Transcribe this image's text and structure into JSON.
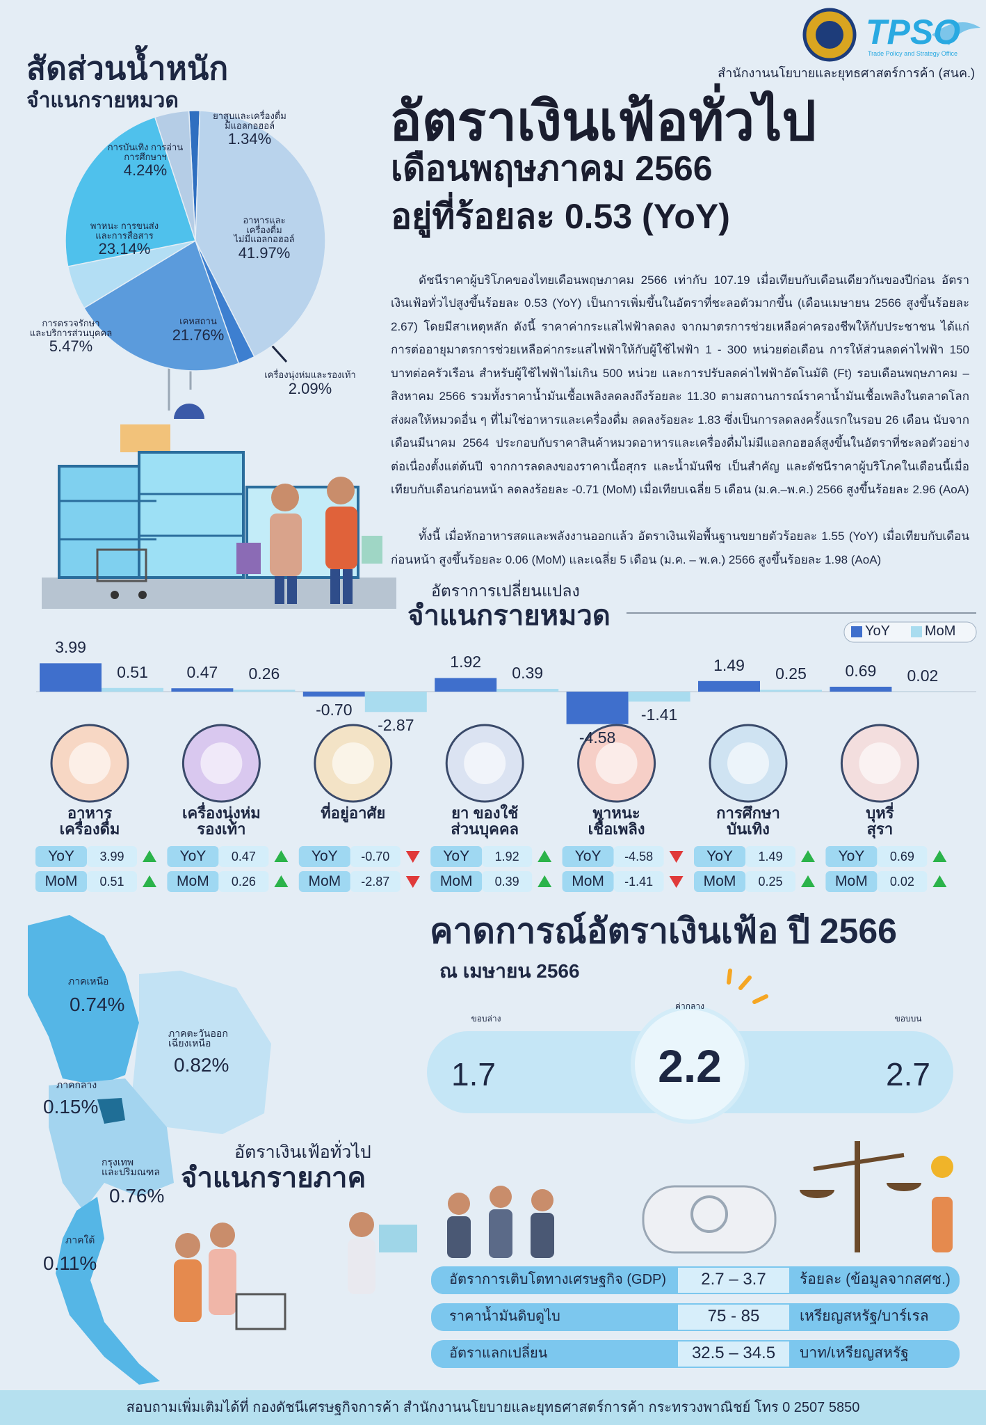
{
  "header": {
    "logo_text": "TPSO",
    "logo_sub": "Trade Policy and Strategy Office",
    "org": "สำนักงานนโยบายและยุทธศาสตร์การค้า (สนค.)"
  },
  "headline": {
    "title": "อัตราเงินเฟ้อทั่วไป",
    "month": "เดือนพฤษภาคม 2566",
    "rate": "อยู่ที่ร้อยละ 0.53 (YoY)"
  },
  "body": {
    "paragraphs": [
      "ดัชนีราคาผู้บริโภคของไทยเดือนพฤษภาคม 2566 เท่ากับ 107.19 เมื่อเทียบกับเดือนเดียวกันของปีก่อน อัตราเงินเฟ้อทั่วไปสูงขึ้นร้อยละ 0.53 (YoY) เป็นการเพิ่มขึ้นในอัตราที่ชะลอตัวมากขึ้น (เดือนเมษายน 2566 สูงขึ้นร้อยละ 2.67) โดยมีสาเหตุหลัก ดังนี้ ราคาค่ากระแสไฟฟ้าลดลง จากมาตรการช่วยเหลือค่าครองชีพให้กับประชาชน ได้แก่ การต่ออายุมาตรการช่วยเหลือค่ากระแสไฟฟ้าให้กับผู้ใช้ไฟฟ้า 1 - 300 หน่วยต่อเดือน การให้ส่วนลดค่าไฟฟ้า 150 บาทต่อครัวเรือน สำหรับผู้ใช้ไฟฟ้าไม่เกิน 500 หน่วย และการปรับลดค่าไฟฟ้าอัตโนมัติ (Ft) รอบเดือนพฤษภาคม –สิงหาคม 2566 รวมทั้งราคาน้ำมันเชื้อเพลิงลดลงถึงร้อยละ 11.30 ตามสถานการณ์ราคาน้ำมันเชื้อเพลิงในตลาดโลก ส่งผลให้หมวดอื่น ๆ ที่ไม่ใช่อาหารและเครื่องดื่ม ลดลงร้อยละ 1.83 ซึ่งเป็นการลดลงครั้งแรกในรอบ 26 เดือน นับจากเดือนมีนาคม 2564 ประกอบกับราคาสินค้าหมวดอาหารและเครื่องดื่มไม่มีแอลกอฮอล์สูงขึ้นในอัตราที่ชะลอตัวอย่างต่อเนื่องตั้งแต่ต้นปี จากการลดลงของราคาเนื้อสุกร และน้ำมันพืช เป็นสำคัญ และดัชนีราคาผู้บริโภคในเดือนนี้เมื่อเทียบกับเดือนก่อนหน้า ลดลงร้อยละ -0.71 (MoM) เมื่อเทียบเฉลี่ย 5 เดือน (ม.ค.–พ.ค.) 2566 สูงขึ้นร้อยละ 2.96 (AoA)",
      "ทั้งนี้ เมื่อหักอาหารสดและพลังงานออกแล้ว อัตราเงินเฟ้อพื้นฐานขยายตัวร้อยละ 1.55 (YoY) เมื่อเทียบกับเดือนก่อนหน้า สูงขึ้นร้อยละ 0.06 (MoM) และเฉลี่ย 5 เดือน (ม.ค. – พ.ค.) 2566 สูงขึ้นร้อยละ 1.98 (AoA)"
    ]
  },
  "chart_data": [
    {
      "type": "pie",
      "title": "สัดส่วนน้ำหนัก",
      "subtitle": "จำแนกรายหมวด",
      "categories": [
        "ยาสูบและเครื่องดื่ม\nมีแอลกอฮอล์",
        "อาหารและ\nเครื่องดื่ม\nไม่มีแอลกอฮอล์",
        "เครื่องนุ่งห่มและรองเท้า",
        "เคหสถาน",
        "การตรวจรักษา\nและบริการส่วนบุคคล",
        "พาหนะ การขนส่ง\nและการสื่อสาร",
        "การบันเทิง การอ่าน\nการศึกษาฯ"
      ],
      "values": [
        1.34,
        41.97,
        2.09,
        21.76,
        5.47,
        23.14,
        4.24
      ],
      "value_labels": [
        "1.34%",
        "41.97%",
        "2.09%",
        "21.76%",
        "5.47%",
        "23.14%",
        "4.24%"
      ],
      "colors": [
        "#2f6fc0",
        "#b9d3ec",
        "#3d7fd0",
        "#5b9bdc",
        "#b3def4",
        "#4fc1ec",
        "#b5cde6"
      ]
    },
    {
      "type": "bar",
      "subtitle": "อัตราการเปลี่ยนแปลง",
      "title": "จำแนกรายหมวด",
      "categories": [
        "อาหาร\nเครื่องดื่ม",
        "เครื่องนุ่งห่ม\nรองเท้า",
        "ที่อยู่อาศัย",
        "ยา ของใช้\nส่วนบุคคล",
        "พาหนะ\nเชื้อเพลิง",
        "การศึกษา\nบันเทิง",
        "บุหรี่\nสุรา"
      ],
      "series": [
        {
          "name": "YoY",
          "color": "#3f6fcc",
          "values": [
            3.99,
            0.47,
            -0.7,
            1.92,
            -4.58,
            1.49,
            0.69
          ],
          "value_labels": [
            "3.99",
            "0.47",
            "-0.70",
            "1.92",
            "-4.58",
            "1.49",
            "0.69"
          ]
        },
        {
          "name": "MoM",
          "color": "#a9dcef",
          "values": [
            0.51,
            0.26,
            -2.87,
            0.39,
            -1.41,
            0.25,
            0.02
          ],
          "value_labels": [
            "0.51",
            "0.26",
            "-2.87",
            "0.39",
            "-1.41",
            "0.25",
            "0.02"
          ]
        }
      ],
      "legend": "top-right"
    }
  ],
  "regions": {
    "subtitle": "อัตราเงินเฟ้อทั่วไป",
    "title": "จำแนกรายภาค",
    "items": [
      {
        "name": "ภาคเหนือ",
        "value": "0.74%"
      },
      {
        "name": "ภาคตะวันออก\nเฉียงเหนือ",
        "value": "0.82%"
      },
      {
        "name": "ภาคกลาง",
        "value": "0.15%"
      },
      {
        "name": "กรุงเทพ\nและปริมณฑล",
        "value": "0.76%"
      },
      {
        "name": "ภาคใต้",
        "value": "0.11%"
      }
    ]
  },
  "forecast": {
    "title": "คาดการณ์อัตราเงินเฟ้อ ปี 2566",
    "subtitle": "ณ เมษายน 2566",
    "low_label": "ขอบล่าง",
    "low": 1.7,
    "mid_label": "ค่ากลาง",
    "mid": 2.2,
    "high_label": "ขอบบน",
    "high": 2.7,
    "assumptions": [
      [
        "อัตราการเติบโตทางเศรษฐกิจ (GDP)",
        "2.7 – 3.7",
        "ร้อยละ (ข้อมูลจากสศช.)"
      ],
      [
        "ราคาน้ำมันดิบดูไบ",
        "75 - 85",
        "เหรียญสหรัฐ/บาร์เรล"
      ],
      [
        "อัตราแลกเปลี่ยน",
        "32.5 – 34.5",
        "บาท/เหรียญสหรัฐ"
      ]
    ]
  },
  "footer": "สอบถามเพิ่มเติมได้ที่ กองดัชนีเศรษฐกิจการค้า สำนักงานนโยบายและยุทธศาสตร์การค้า กระทรวงพาณิชย์ โทร 0 2507 5850"
}
